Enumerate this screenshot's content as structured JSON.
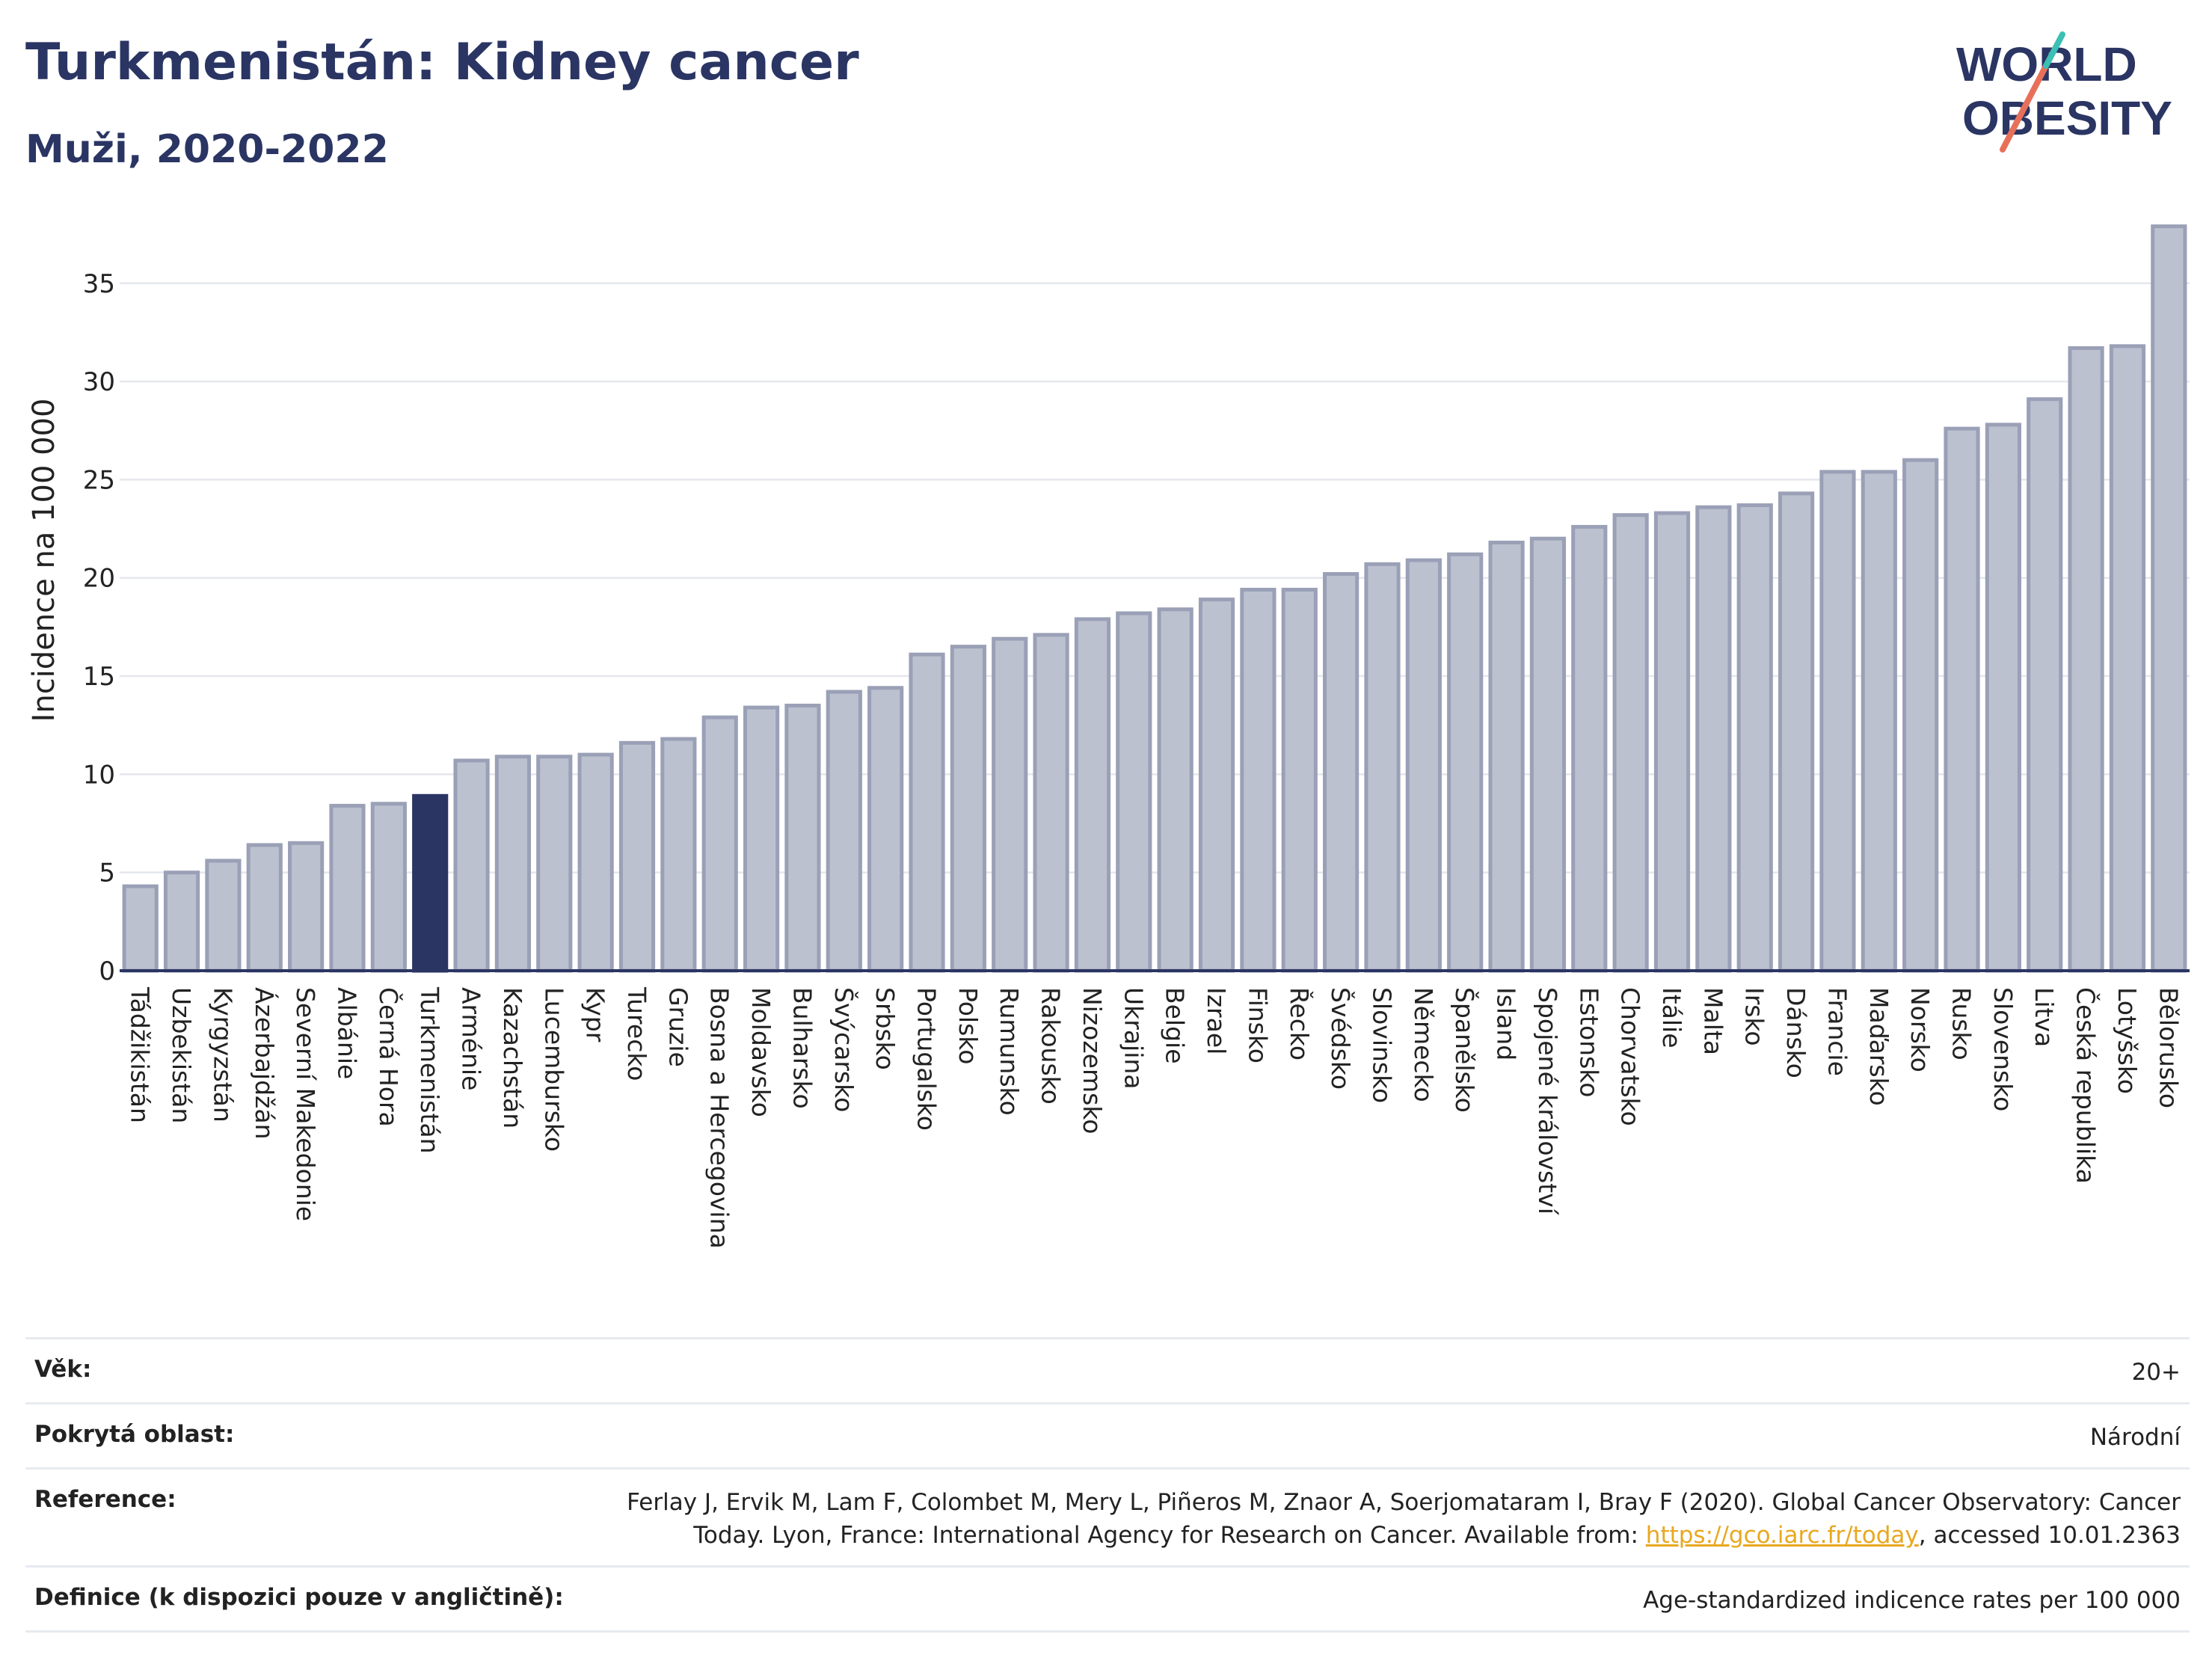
{
  "header": {
    "title": "Turkmenistán: Kidney cancer",
    "subtitle": "Muži, 2020-2022"
  },
  "logo": {
    "line1": "WORLD",
    "line2": "OBESITY"
  },
  "colors": {
    "bar": "#bcc1d0",
    "bar_stroke": "#9aa0b6",
    "highlight": "#2a3563",
    "grid": "#e5e7ee"
  },
  "chart_data": {
    "type": "bar",
    "ylabel": "Incidence na 100 000",
    "ylim": [
      0,
      38
    ],
    "yticks": [
      0,
      5,
      10,
      15,
      20,
      25,
      30,
      35
    ],
    "highlight": "Turkmenistán",
    "categories": [
      "Tádžikistán",
      "Uzbekistán",
      "Kyrgyzstán",
      "Ázerbajdžán",
      "Severní Makedonie",
      "Albánie",
      "Černá Hora",
      "Turkmenistán",
      "Arménie",
      "Kazachstán",
      "Lucembursko",
      "Kypr",
      "Turecko",
      "Gruzie",
      "Bosna a Hercegovina",
      "Moldavsko",
      "Bulharsko",
      "Švýcarsko",
      "Srbsko",
      "Portugalsko",
      "Polsko",
      "Rumunsko",
      "Rakousko",
      "Nizozemsko",
      "Ukrajina",
      "Belgie",
      "Izrael",
      "Finsko",
      "Řecko",
      "Švédsko",
      "Slovinsko",
      "Německo",
      "Španělsko",
      "Island",
      "Spojené království",
      "Estonsko",
      "Chorvatsko",
      "Itálie",
      "Malta",
      "Irsko",
      "Dánsko",
      "Francie",
      "Maďarsko",
      "Norsko",
      "Rusko",
      "Slovensko",
      "Litva",
      "Česká republika",
      "Lotyšsko",
      "Bělorusko"
    ],
    "values": [
      4.3,
      5.0,
      5.6,
      6.4,
      6.5,
      8.4,
      8.5,
      8.9,
      10.7,
      10.9,
      10.9,
      11.0,
      11.6,
      11.8,
      12.9,
      13.4,
      13.5,
      14.2,
      14.4,
      16.1,
      16.5,
      16.9,
      17.1,
      17.9,
      18.2,
      18.4,
      18.9,
      19.4,
      19.4,
      20.2,
      20.7,
      20.9,
      21.2,
      21.8,
      22.0,
      22.6,
      23.2,
      23.3,
      23.6,
      23.7,
      24.3,
      25.4,
      25.4,
      26.0,
      27.6,
      27.8,
      29.1,
      31.7,
      31.8,
      37.9
    ]
  },
  "info": {
    "age_label": "Věk:",
    "age_value": "20+",
    "area_label": "Pokrytá oblast:",
    "area_value": "Národní",
    "ref_label": "Reference:",
    "ref_text_1": "Ferlay J, Ervik M, Lam F, Colombet M, Mery L, Piñeros M, Znaor A, Soerjomataram I, Bray F (2020). Global Cancer Observatory: Cancer Today. Lyon, France: International Agency for Research on Cancer. Available from: ",
    "ref_link": "https://gco.iarc.fr/today",
    "ref_text_2": ", accessed 10.01.2363",
    "def_label": "Definice (k dispozici pouze v angličtině):",
    "def_value": "Age-standardized indicence rates per 100 000"
  }
}
